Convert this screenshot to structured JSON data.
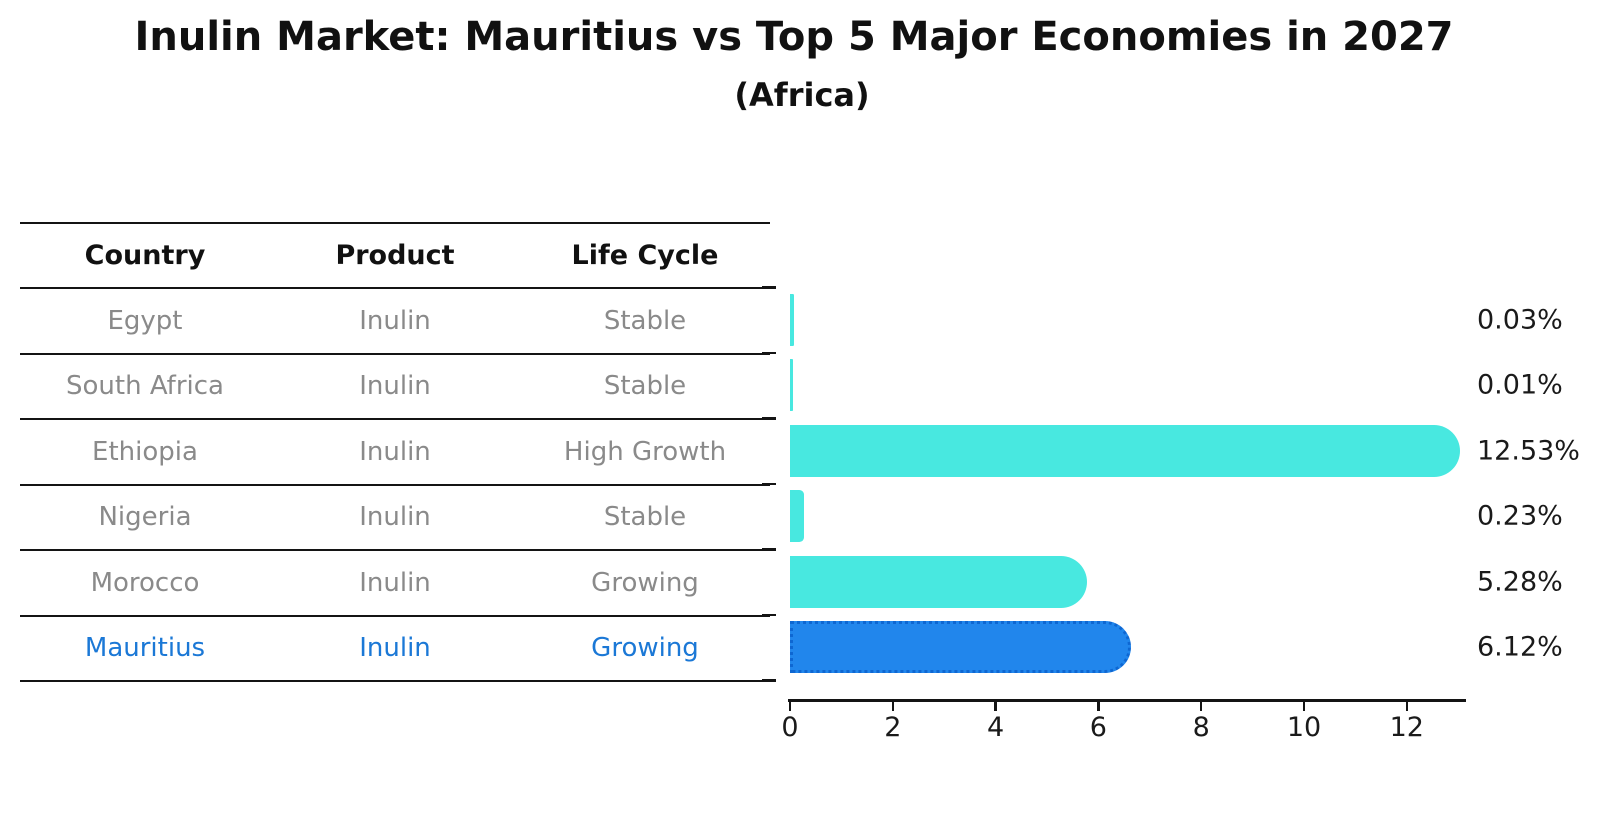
{
  "header": {
    "title": "Inulin Market: Mauritius vs Top 5 Major Economies in 2027",
    "subtitle": "(Africa)"
  },
  "table": {
    "headers": [
      "Country",
      "Product",
      "Life Cycle"
    ],
    "rows": [
      {
        "country": "Egypt",
        "product": "Inulin",
        "life_cycle": "Stable",
        "highlight": false
      },
      {
        "country": "South Africa",
        "product": "Inulin",
        "life_cycle": "Stable",
        "highlight": false
      },
      {
        "country": "Ethiopia",
        "product": "Inulin",
        "life_cycle": "High Growth",
        "highlight": false
      },
      {
        "country": "Nigeria",
        "product": "Inulin",
        "life_cycle": "Stable",
        "highlight": false
      },
      {
        "country": "Morocco",
        "product": "Inulin",
        "life_cycle": "Growing",
        "highlight": false
      },
      {
        "country": "Mauritius",
        "product": "Inulin",
        "life_cycle": "Growing",
        "highlight": true
      }
    ]
  },
  "chart_data": {
    "type": "bar",
    "orientation": "horizontal",
    "title": "Inulin Market: Mauritius vs Top 5 Major Economies in 2027",
    "subtitle": "(Africa)",
    "categories": [
      "Egypt",
      "South Africa",
      "Ethiopia",
      "Nigeria",
      "Morocco",
      "Mauritius"
    ],
    "values": [
      0.03,
      0.01,
      12.53,
      0.23,
      5.28,
      6.12
    ],
    "value_labels": [
      "0.03%",
      "0.01%",
      "12.53%",
      "0.23%",
      "5.28%",
      "6.12%"
    ],
    "x_ticks": [
      0,
      2,
      4,
      6,
      8,
      10,
      12
    ],
    "xlim": [
      0,
      13.15
    ],
    "unit": "percent",
    "grid": false,
    "legend": false,
    "highlight_index": 5,
    "highlight_category": "Mauritius"
  },
  "colors": {
    "bar_normal": "#48e8e0",
    "bar_highlight": "#2186ec",
    "highlight_text": "#1b78d6",
    "table_text": "#8a8a8a",
    "heading_text": "#111111",
    "axis": "#141414"
  }
}
